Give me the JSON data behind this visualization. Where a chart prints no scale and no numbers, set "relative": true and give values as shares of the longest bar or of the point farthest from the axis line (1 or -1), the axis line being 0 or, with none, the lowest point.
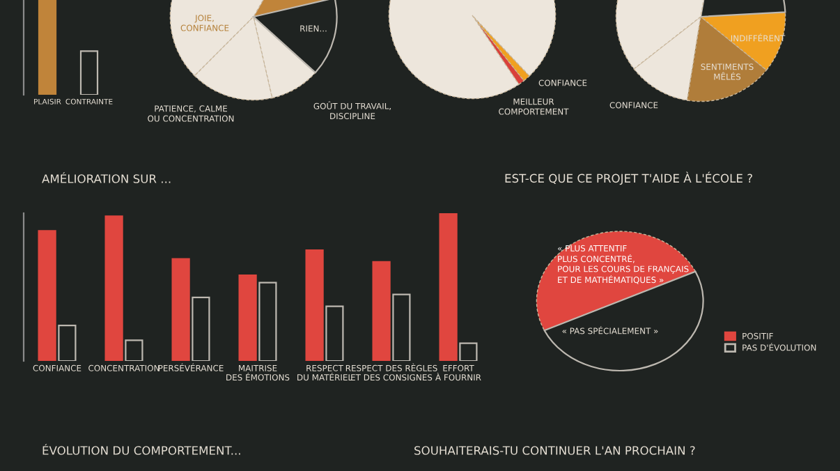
{
  "chart_data": [
    {
      "type": "bar",
      "relative": true,
      "categories": [
        "PLAISIR",
        "CONTRAINTE"
      ],
      "values": [
        1,
        0.46
      ],
      "colors": [
        "#c0843a",
        "#1f2321"
      ]
    },
    {
      "type": "pie",
      "categories": [
        null,
        "JOIE,\nCONFIANCE",
        "PATIENCE, CALME\nOU CONCENTRATION",
        "GOÛT DU TRAVAIL,\nDISCIPLINE",
        "RIEN..."
      ],
      "values": [
        13.1,
        45.8,
        16.1,
        9.7,
        15.3
      ],
      "colors": [
        "#c0843a",
        "#ede6dc",
        "#ede6dc",
        "#ede6dc",
        "#1f2321"
      ]
    },
    {
      "type": "pie",
      "categories": [
        "MEILLEUR\nCOMPORTEMENT",
        "CONFIANCE",
        null
      ],
      "values": [
        1.2,
        1.4,
        97.4
      ],
      "colors": [
        "#d9403a",
        "#f0a020",
        "#ede6dc"
      ]
    },
    {
      "type": "pie",
      "categories": [
        "CONFIANCE",
        "SENTIMENTS\nMÊLÉS",
        "INDIFFÉRENT",
        null,
        null
      ],
      "values": [
        11.9,
        16.7,
        11.7,
        21.4,
        38.3
      ],
      "colors": [
        "#ede6dc",
        "#b07d3a",
        "#f0a020",
        "#1f2321",
        "#ede6dc"
      ]
    },
    {
      "type": "bar",
      "title": "AMÉLIORATION SUR ...",
      "relative": true,
      "categories": [
        "CONFIANCE",
        "CONCENTRATION",
        "PERSÉVÉRANCE",
        "MAITRISE\nDES ÉMOTIONS",
        "RESPECT\nDU MATÉRIEL",
        "RESPECT DES RÈGLES\nET DES CONSIGNES",
        "EFFORT\nÀ FOURNIR"
      ],
      "series": [
        {
          "color": "#e0463f",
          "values": [
            0.88,
            0.98,
            0.69,
            0.58,
            0.75,
            0.67,
            1.0
          ]
        },
        {
          "color": "#1f2321",
          "values": [
            0.24,
            0.14,
            0.43,
            0.53,
            0.37,
            0.45,
            0.12
          ]
        }
      ]
    },
    {
      "type": "pie",
      "title": "EST-CE QUE CE PROJET T'AIDE À L'ÉCOLE ?",
      "categories": [
        "POSITIF",
        "PAS D'ÉVOLUTION"
      ],
      "values": [
        50,
        50
      ],
      "colors": [
        "#e0463f",
        "#1f2321"
      ],
      "legend": "right",
      "annotations": [
        "« PLUS ATTENTIF\nPLUS CONCENTRÉ,\nPOUR LES COURS DE FRANÇAIS\nET DE MATHÉMATIQUES »",
        "« PAS SPÉCIALEMENT »"
      ]
    },
    {
      "type": "other",
      "title": "ÉVOLUTION DU COMPORTEMENT..."
    },
    {
      "type": "other",
      "title": "SOUHAITERAIS-TU CONTINUER L'AN PROCHAIN ?"
    }
  ]
}
